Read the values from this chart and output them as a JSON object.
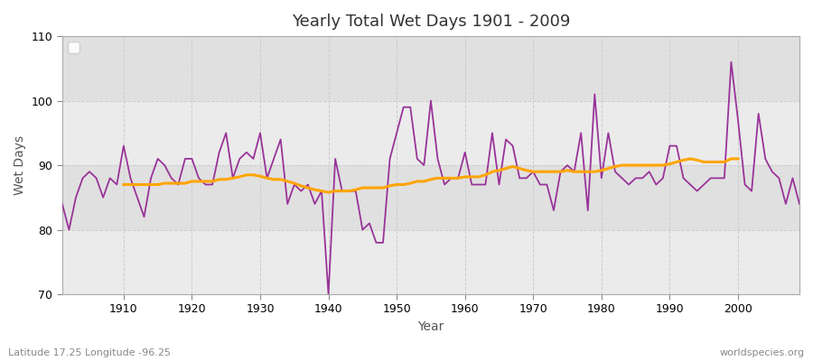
{
  "title": "Yearly Total Wet Days 1901 - 2009",
  "xlabel": "Year",
  "ylabel": "Wet Days",
  "lat_lon_label": "Latitude 17.25 Longitude -96.25",
  "watermark": "worldspecies.org",
  "ylim": [
    70,
    110
  ],
  "xlim": [
    1901,
    2009
  ],
  "wet_days_color": "#993399",
  "trend_color": "#FFA500",
  "background_color": "#F0F0F0",
  "plot_bg_light": "#EBEBEB",
  "plot_bg_dark": "#E0E0E0",
  "grid_color": "#FFFFFF",
  "wet_days": {
    "1901": 84,
    "1902": 80,
    "1903": 85,
    "1904": 88,
    "1905": 89,
    "1906": 88,
    "1907": 85,
    "1908": 88,
    "1909": 87,
    "1910": 93,
    "1911": 88,
    "1912": 85,
    "1913": 82,
    "1914": 88,
    "1915": 91,
    "1916": 90,
    "1917": 88,
    "1918": 87,
    "1919": 91,
    "1920": 91,
    "1921": 88,
    "1922": 87,
    "1923": 87,
    "1924": 92,
    "1925": 95,
    "1926": 88,
    "1927": 91,
    "1928": 92,
    "1929": 91,
    "1930": 95,
    "1931": 88,
    "1932": 91,
    "1933": 94,
    "1934": 84,
    "1935": 87,
    "1936": 86,
    "1937": 87,
    "1938": 84,
    "1939": 86,
    "1940": 70,
    "1941": 91,
    "1942": 86,
    "1943": 86,
    "1944": 86,
    "1945": 80,
    "1946": 81,
    "1947": 78,
    "1948": 78,
    "1949": 91,
    "1950": 95,
    "1951": 99,
    "1952": 99,
    "1953": 91,
    "1954": 90,
    "1955": 100,
    "1956": 91,
    "1957": 87,
    "1958": 88,
    "1959": 88,
    "1960": 92,
    "1961": 87,
    "1962": 87,
    "1963": 87,
    "1964": 95,
    "1965": 87,
    "1966": 94,
    "1967": 93,
    "1968": 88,
    "1969": 88,
    "1970": 89,
    "1971": 87,
    "1972": 87,
    "1973": 83,
    "1974": 89,
    "1975": 90,
    "1976": 89,
    "1977": 95,
    "1978": 83,
    "1979": 101,
    "1980": 88,
    "1981": 95,
    "1982": 89,
    "1983": 88,
    "1984": 87,
    "1985": 88,
    "1986": 88,
    "1987": 89,
    "1988": 87,
    "1989": 88,
    "1990": 93,
    "1991": 93,
    "1992": 88,
    "1993": 87,
    "1994": 86,
    "1995": 87,
    "1996": 88,
    "1997": 88,
    "1998": 88,
    "1999": 106,
    "2000": 97,
    "2001": 87,
    "2002": 86,
    "2003": 98,
    "2004": 91,
    "2005": 89,
    "2006": 88,
    "2007": 84,
    "2008": 88,
    "2009": 84
  },
  "trend_20yr": {
    "1910": 87.0,
    "1911": 87.0,
    "1912": 87.0,
    "1913": 87.0,
    "1914": 87.0,
    "1915": 87.0,
    "1916": 87.2,
    "1917": 87.2,
    "1918": 87.2,
    "1919": 87.2,
    "1920": 87.5,
    "1921": 87.5,
    "1922": 87.5,
    "1923": 87.5,
    "1924": 87.8,
    "1925": 87.8,
    "1926": 88.0,
    "1927": 88.2,
    "1928": 88.5,
    "1929": 88.5,
    "1930": 88.3,
    "1931": 88.0,
    "1932": 87.8,
    "1933": 87.8,
    "1934": 87.5,
    "1935": 87.2,
    "1936": 86.8,
    "1937": 86.5,
    "1938": 86.2,
    "1939": 86.0,
    "1940": 85.8,
    "1941": 86.0,
    "1942": 86.0,
    "1943": 86.0,
    "1944": 86.2,
    "1945": 86.5,
    "1946": 86.5,
    "1947": 86.5,
    "1948": 86.5,
    "1949": 86.8,
    "1950": 87.0,
    "1951": 87.0,
    "1952": 87.2,
    "1953": 87.5,
    "1954": 87.5,
    "1955": 87.8,
    "1956": 88.0,
    "1957": 88.0,
    "1958": 88.0,
    "1959": 88.0,
    "1960": 88.2,
    "1961": 88.2,
    "1962": 88.2,
    "1963": 88.5,
    "1964": 89.0,
    "1965": 89.2,
    "1966": 89.5,
    "1967": 89.8,
    "1968": 89.5,
    "1969": 89.2,
    "1970": 89.0,
    "1971": 89.0,
    "1972": 89.0,
    "1973": 89.0,
    "1974": 89.0,
    "1975": 89.2,
    "1976": 89.0,
    "1977": 89.0,
    "1978": 89.0,
    "1979": 89.0,
    "1980": 89.2,
    "1981": 89.5,
    "1982": 89.8,
    "1983": 90.0,
    "1984": 90.0,
    "1985": 90.0,
    "1986": 90.0,
    "1987": 90.0,
    "1988": 90.0,
    "1989": 90.0,
    "1990": 90.2,
    "1991": 90.5,
    "1992": 90.8,
    "1993": 91.0,
    "1994": 90.8,
    "1995": 90.5,
    "1996": 90.5,
    "1997": 90.5,
    "1998": 90.5,
    "1999": 91.0,
    "2000": 91.0
  }
}
